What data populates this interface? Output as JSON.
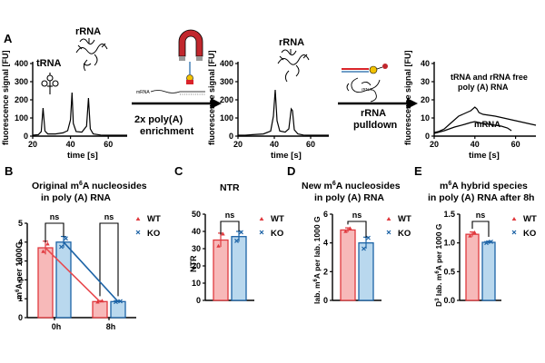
{
  "panel_letters": {
    "A": "A",
    "B": "B",
    "C": "C",
    "D": "D",
    "E": "E"
  },
  "panel_a": {
    "ylabel": "fluorescence signal [FU]",
    "xlabel": "time [s]",
    "label_trna": "tRNA",
    "label_rrna": "rRNA",
    "label_rrna_2": "rRNA",
    "label_free": "tRNA and rRNA free",
    "label_free_2": "poly (A) RNA",
    "label_mrna": "mRNA",
    "mrna_strand": "mRNA",
    "rrna_blob": "rRNA",
    "step1_line1": "2x poly(A)",
    "step1_line2": "enrichment",
    "step2_line1": "rRNA",
    "step2_line2": "pulldown",
    "colors": {
      "magnet": "#c1272d",
      "tip": "#9a9a9a",
      "bead": "#f2c200",
      "red": "#d9242a",
      "blue": "#1c63a6"
    }
  },
  "chart_data": [
    {
      "panel": "A1",
      "type": "line",
      "xlabel": "time [s]",
      "ylabel": "fluorescence signal [FU]",
      "xlim": [
        20,
        70
      ],
      "ylim": [
        0,
        400
      ],
      "xticks": [
        20,
        40,
        60
      ],
      "yticks": [
        0,
        100,
        200,
        300,
        400
      ],
      "series": [
        {
          "name": "trace",
          "x": [
            20,
            23,
            24.5,
            25.5,
            26.5,
            28,
            32,
            36,
            38.5,
            40,
            40.8,
            41.5,
            43,
            46,
            48.5,
            49.5,
            50.5,
            52,
            56,
            60,
            65,
            70
          ],
          "y": [
            5,
            8,
            25,
            155,
            28,
            12,
            12,
            18,
            30,
            90,
            240,
            70,
            25,
            22,
            55,
            210,
            40,
            12,
            6,
            5,
            5,
            5
          ]
        }
      ]
    },
    {
      "panel": "A2",
      "type": "line",
      "xlabel": "time [s]",
      "ylabel": "fluorescence signal [FU]",
      "xlim": [
        20,
        70
      ],
      "ylim": [
        0,
        400
      ],
      "xticks": [
        20,
        40,
        60
      ],
      "yticks": [
        0,
        100,
        200,
        300,
        400
      ],
      "series": [
        {
          "name": "trace",
          "x": [
            20,
            24,
            28,
            34,
            38,
            39.5,
            40.5,
            41.5,
            43,
            46,
            48,
            49.3,
            50,
            51,
            53,
            56,
            60,
            66,
            70
          ],
          "y": [
            5,
            5,
            8,
            12,
            28,
            110,
            255,
            85,
            28,
            22,
            40,
            150,
            140,
            35,
            12,
            6,
            5,
            5,
            5
          ]
        }
      ]
    },
    {
      "panel": "A3",
      "type": "line",
      "xlabel": "time [s]",
      "ylabel": "fluorescence signal [FU]",
      "xlim": [
        20,
        70
      ],
      "ylim": [
        0,
        40
      ],
      "xticks": [
        20,
        40,
        60
      ],
      "yticks": [
        0,
        10,
        20,
        30,
        40
      ],
      "series": [
        {
          "name": "total",
          "x": [
            20,
            22,
            25,
            28,
            32,
            36,
            38,
            40,
            41,
            42,
            44,
            47,
            50,
            54,
            58,
            62,
            66,
            70
          ],
          "y": [
            2,
            2.5,
            4,
            7,
            11,
            13,
            14,
            16,
            15,
            13,
            12,
            11.5,
            11,
            10,
            9,
            8,
            7,
            6
          ]
        },
        {
          "name": "mRNA",
          "x": [
            20,
            25,
            30,
            35,
            38,
            40,
            42,
            44,
            47,
            50,
            53,
            56,
            58
          ],
          "y": [
            1.5,
            3,
            5,
            6.5,
            7.5,
            8,
            7.5,
            7,
            6.5,
            6,
            5.5,
            4.5,
            3
          ]
        }
      ]
    },
    {
      "panel": "B",
      "type": "bar",
      "title_pre": "Original m",
      "title_sup": "6",
      "title_post": "A nucleosides",
      "title_line2": "in poly  (A) RNA",
      "ylabel_pre": "m",
      "ylabel_sup": "6",
      "ylabel_post": "A per 1000G",
      "categories": [
        "0h",
        "8h"
      ],
      "ylim": [
        0,
        5
      ],
      "yticks": [
        0,
        1,
        2,
        3,
        4,
        5
      ],
      "series": [
        {
          "name": "WT",
          "values": [
            3.7,
            0.85
          ],
          "errors": [
            0.35,
            0.05
          ],
          "points": [
            [
              3.5,
              3.9
            ],
            [
              0.82,
              0.88
            ]
          ]
        },
        {
          "name": "KO",
          "values": [
            4.0,
            0.85
          ],
          "errors": [
            0.3,
            0.04
          ],
          "points": [
            [
              3.75,
              4.2
            ],
            [
              0.83,
              0.87
            ]
          ]
        }
      ],
      "significance": [
        {
          "label": "ns"
        },
        {
          "label": "ns"
        }
      ]
    },
    {
      "panel": "C",
      "type": "bar",
      "title": "NTR",
      "ylabel": "NTR",
      "categories": [
        ""
      ],
      "ylim": [
        0,
        50
      ],
      "yticks": [
        0,
        10,
        20,
        30,
        40,
        50
      ],
      "series": [
        {
          "name": "WT",
          "values": [
            35
          ],
          "errors": [
            4
          ],
          "points": [
            [
              31.5,
              38.5
            ]
          ]
        },
        {
          "name": "KO",
          "values": [
            37
          ],
          "errors": [
            3
          ],
          "points": [
            [
              34.5,
              39.5
            ]
          ]
        }
      ],
      "significance": [
        {
          "label": "ns"
        }
      ]
    },
    {
      "panel": "D",
      "type": "bar",
      "title_pre": "New m",
      "title_sup": "6",
      "title_post": "A nucleosides",
      "title_line2": "in poly (A) RNA",
      "ylabel_pre": "lab. m",
      "ylabel_sup": "6",
      "ylabel_post": "A per lab. 1000  G",
      "categories": [
        ""
      ],
      "ylim": [
        0,
        6
      ],
      "yticks": [
        0,
        2,
        4,
        6
      ],
      "series": [
        {
          "name": "WT",
          "values": [
            4.9
          ],
          "errors": [
            0.15
          ],
          "points": [
            [
              4.8,
              5.0
            ]
          ]
        },
        {
          "name": "KO",
          "values": [
            4.0
          ],
          "errors": [
            0.4
          ],
          "points": [
            [
              3.6,
              4.35
            ]
          ]
        }
      ],
      "significance": [
        {
          "label": "ns"
        }
      ]
    },
    {
      "panel": "E",
      "type": "bar",
      "title_pre": "m",
      "title_sup": "6",
      "title_post": "A hybrid species",
      "title_line2": "in poly (A) RNA after 8h",
      "ylabel_pre": "D",
      "ylabel_sup": "3",
      "ylabel_mid": " lab. m",
      "ylabel_sup2": "6",
      "ylabel_post": "A per 1000 G",
      "categories": [
        ""
      ],
      "ylim": [
        0,
        1.5
      ],
      "yticks": [
        0.0,
        0.5,
        1.0,
        1.5
      ],
      "series": [
        {
          "name": "WT",
          "values": [
            1.15
          ],
          "errors": [
            0.04
          ],
          "points": [
            [
              1.12,
              1.18
            ]
          ]
        },
        {
          "name": "KO",
          "values": [
            1.01
          ],
          "errors": [
            0.02
          ],
          "points": [
            [
              1.0,
              1.02
            ]
          ]
        }
      ],
      "significance": [
        {
          "label": "ns"
        }
      ]
    }
  ],
  "legend": {
    "wt": "WT",
    "ko": "KO"
  },
  "colors": {
    "wt_fill": "#f7b9b9",
    "wt_edge": "#e0393e",
    "ko_fill": "#b9d8ee",
    "ko_edge": "#1c63a6",
    "wt_line": "#e8494e",
    "ko_line": "#1c63a6"
  }
}
